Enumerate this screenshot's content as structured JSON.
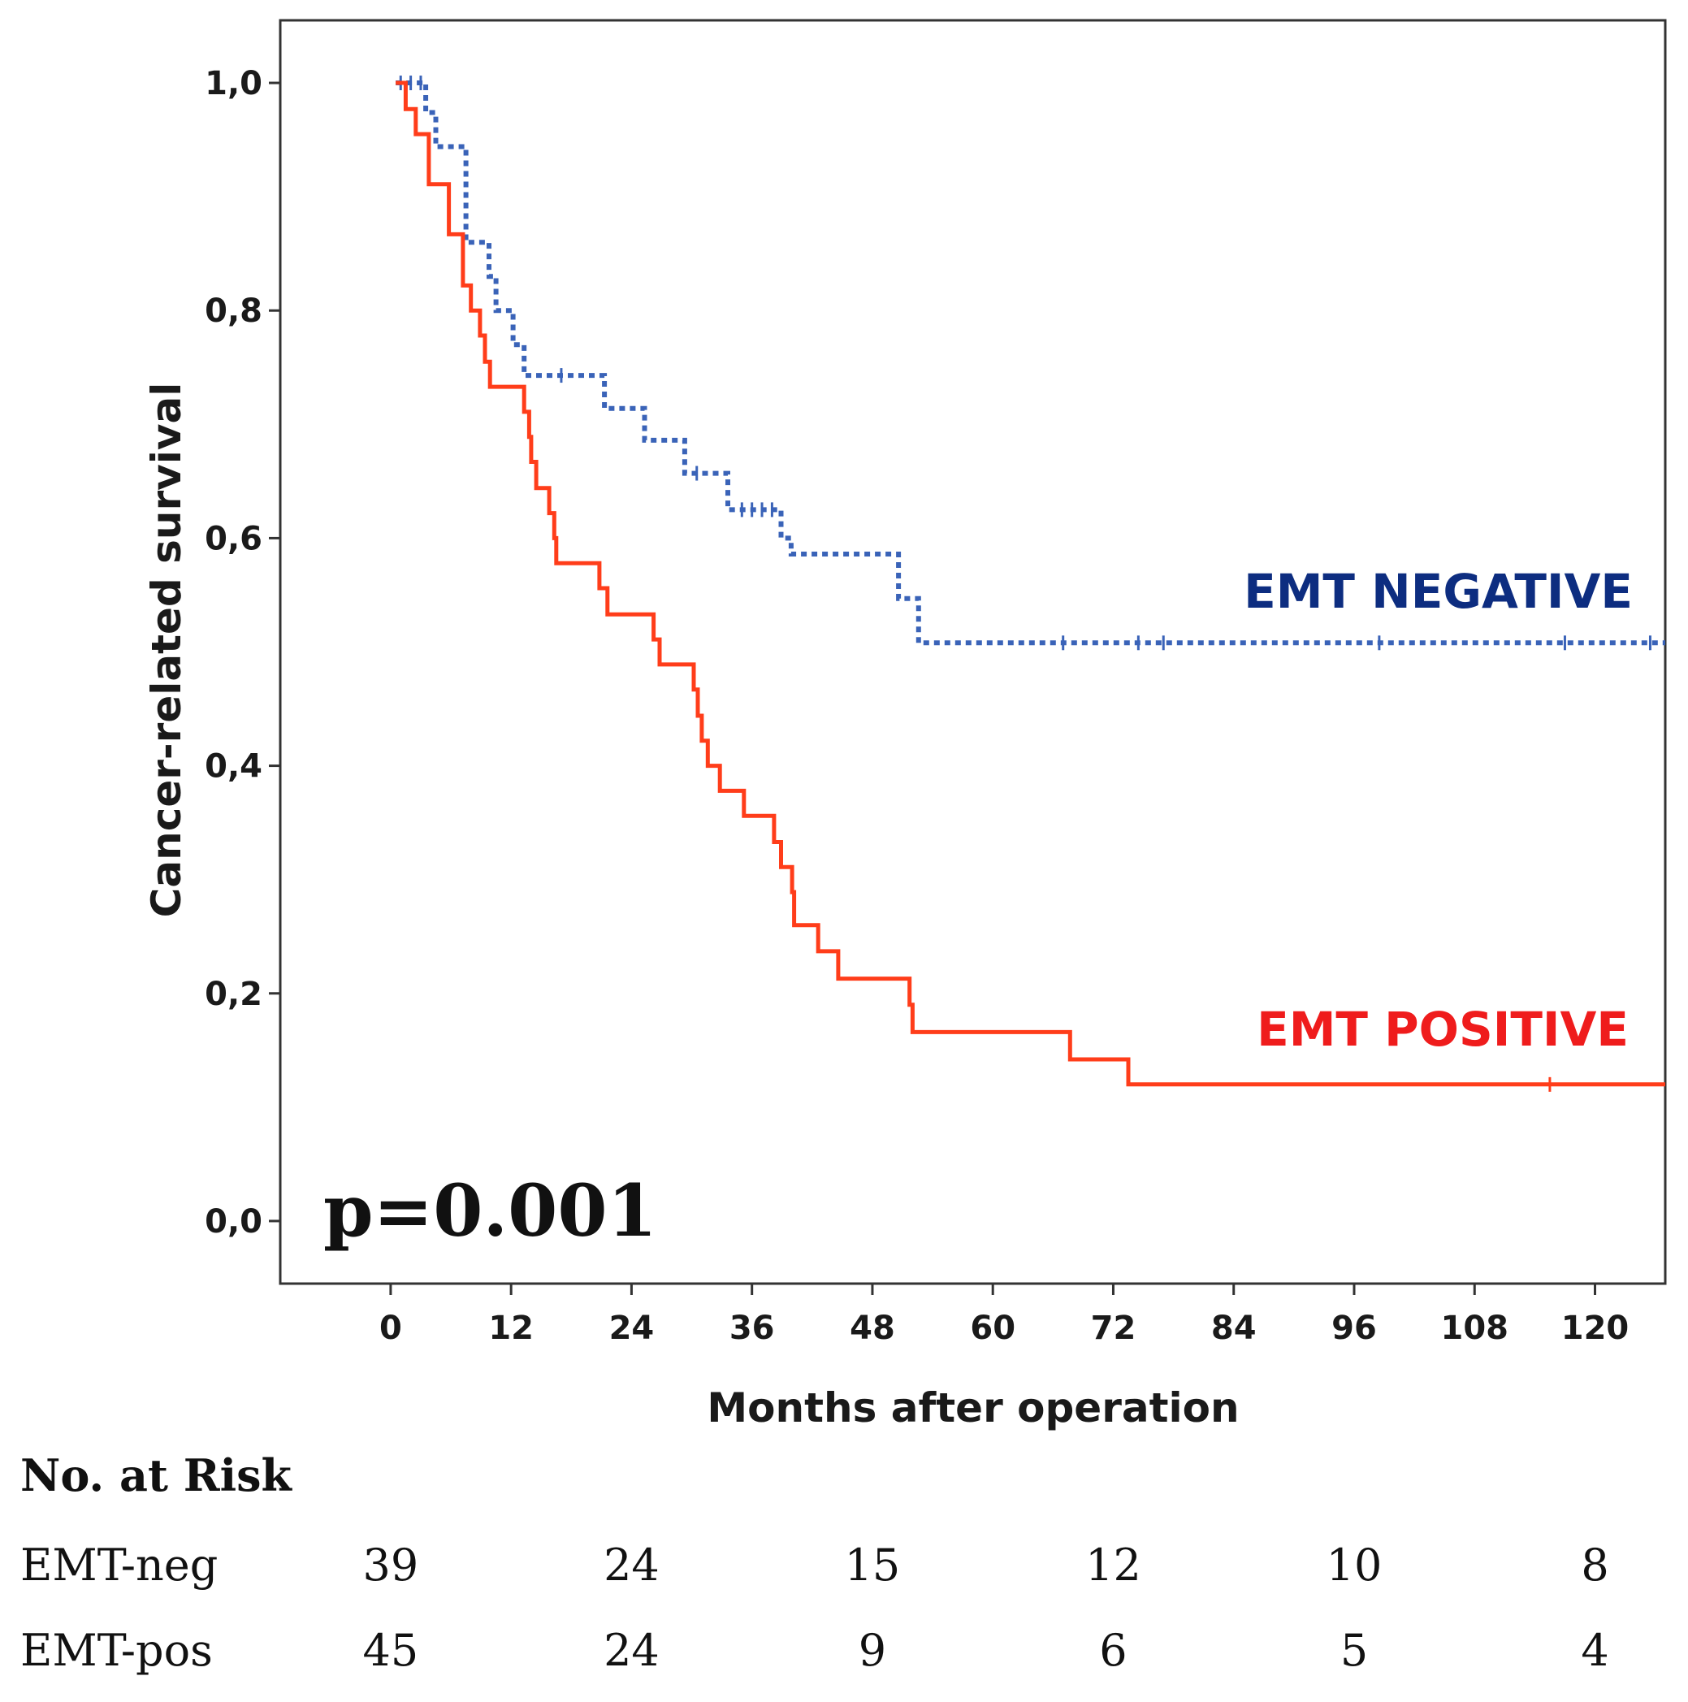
{
  "chart_data": {
    "type": "line",
    "subtype": "kaplan-meier",
    "title": "",
    "xlabel": "Months after operation",
    "ylabel": "Cancer-related survival",
    "xlim": [
      -11,
      127
    ],
    "ylim": [
      -0.055,
      1.055
    ],
    "x_ticks": [
      0,
      12,
      24,
      36,
      48,
      60,
      72,
      84,
      96,
      108,
      120
    ],
    "y_ticks": [
      {
        "value": 0.0,
        "label": "0,0"
      },
      {
        "value": 0.2,
        "label": "0,2"
      },
      {
        "value": 0.4,
        "label": "0,4"
      },
      {
        "value": 0.6,
        "label": "0,6"
      },
      {
        "value": 0.8,
        "label": "0,8"
      },
      {
        "value": 1.0,
        "label": "1,0"
      }
    ],
    "annotation": "p=0.001",
    "series": [
      {
        "name": "EMT NEGATIVE",
        "label": "EMT NEGATIVE",
        "color": "#0d2d80",
        "line_color": "#3a63b8",
        "style": "dotted",
        "steps": [
          [
            0.5,
            1.0
          ],
          [
            3.5,
            0.974
          ],
          [
            4.5,
            0.944
          ],
          [
            7.5,
            0.86
          ],
          [
            9.8,
            0.83
          ],
          [
            10.5,
            0.8
          ],
          [
            12.2,
            0.77
          ],
          [
            13.3,
            0.743
          ],
          [
            21.3,
            0.714
          ],
          [
            25.3,
            0.686
          ],
          [
            29.3,
            0.657
          ],
          [
            33.6,
            0.625
          ],
          [
            38.9,
            0.6
          ],
          [
            39.9,
            0.586
          ],
          [
            50.6,
            0.547
          ],
          [
            52.6,
            0.508
          ],
          [
            127,
            0.508
          ]
        ],
        "censored": [
          [
            1.0,
            1.0
          ],
          [
            2.0,
            1.0
          ],
          [
            3.0,
            1.0
          ],
          [
            17.0,
            0.743
          ],
          [
            30.5,
            0.657
          ],
          [
            35.0,
            0.625
          ],
          [
            36.0,
            0.625
          ],
          [
            37.0,
            0.625
          ],
          [
            38.0,
            0.625
          ],
          [
            67.0,
            0.508
          ],
          [
            74.5,
            0.508
          ],
          [
            77.0,
            0.508
          ],
          [
            98.5,
            0.508
          ],
          [
            117.0,
            0.508
          ],
          [
            125.5,
            0.508
          ]
        ]
      },
      {
        "name": "EMT POSITIVE",
        "label": "EMT POSITIVE",
        "color": "#ef1c1c",
        "line_color": "#ff3d1a",
        "style": "solid",
        "steps": [
          [
            0.5,
            1.0
          ],
          [
            1.5,
            0.977
          ],
          [
            2.5,
            0.955
          ],
          [
            3.8,
            0.911
          ],
          [
            5.8,
            0.867
          ],
          [
            7.2,
            0.822
          ],
          [
            8.0,
            0.8
          ],
          [
            8.9,
            0.778
          ],
          [
            9.4,
            0.755
          ],
          [
            9.9,
            0.733
          ],
          [
            13.3,
            0.711
          ],
          [
            13.8,
            0.689
          ],
          [
            14.0,
            0.667
          ],
          [
            14.5,
            0.644
          ],
          [
            15.8,
            0.622
          ],
          [
            16.3,
            0.6
          ],
          [
            16.5,
            0.578
          ],
          [
            20.8,
            0.556
          ],
          [
            21.6,
            0.533
          ],
          [
            26.2,
            0.511
          ],
          [
            26.8,
            0.489
          ],
          [
            30.2,
            0.467
          ],
          [
            30.6,
            0.444
          ],
          [
            31.0,
            0.422
          ],
          [
            31.6,
            0.4
          ],
          [
            32.8,
            0.378
          ],
          [
            35.2,
            0.356
          ],
          [
            38.2,
            0.333
          ],
          [
            38.9,
            0.311
          ],
          [
            40.0,
            0.289
          ],
          [
            40.2,
            0.26
          ],
          [
            42.6,
            0.237
          ],
          [
            44.6,
            0.213
          ],
          [
            51.7,
            0.19
          ],
          [
            52.0,
            0.166
          ],
          [
            67.7,
            0.142
          ],
          [
            73.5,
            0.12
          ],
          [
            127,
            0.12
          ]
        ],
        "censored": [
          [
            115.5,
            0.12
          ]
        ]
      }
    ]
  },
  "risk_table": {
    "title": "No. at Risk",
    "columns": [
      0,
      24,
      48,
      72,
      96,
      120
    ],
    "rows": [
      {
        "label": "EMT-neg",
        "counts": [
          "39",
          "24",
          "15",
          "12",
          "10",
          "8"
        ]
      },
      {
        "label": "EMT-pos",
        "counts": [
          "45",
          "24",
          "9",
          "6",
          "5",
          "4"
        ]
      }
    ]
  }
}
